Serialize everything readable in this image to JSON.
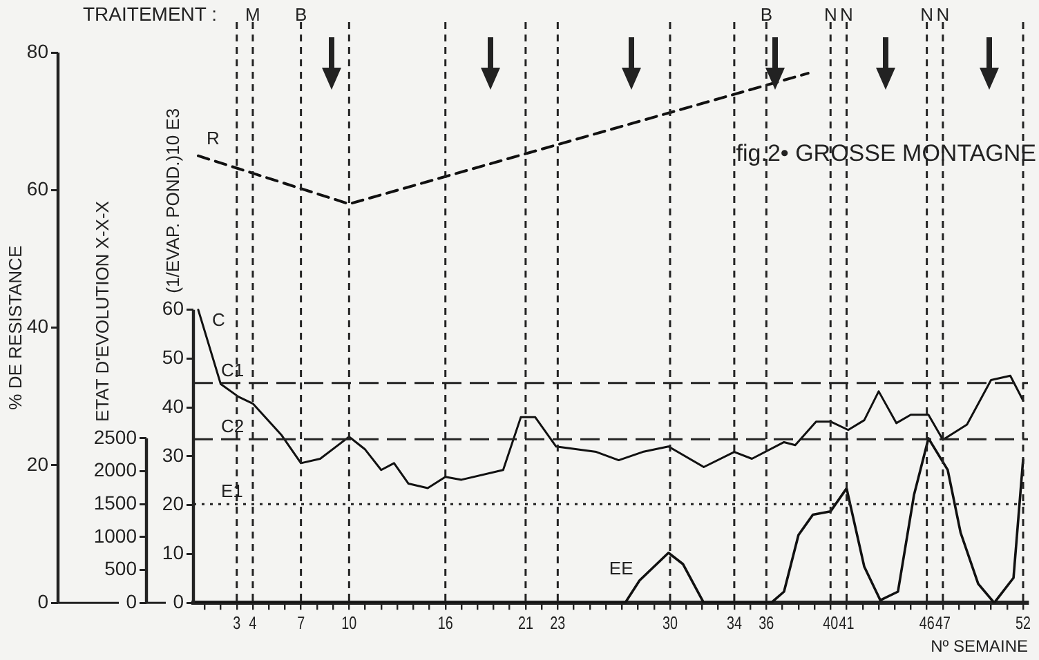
{
  "chart_data": {
    "type": "line",
    "title": "fig.2• GROSSE MONTAGNE",
    "xlabel": "Nº SEMAINE",
    "ylabel": "% DE RESISTANCE",
    "y2label": "(1/EVAP. POND.)10 E3",
    "y3label": "ETAT D'EVOLUTION X-X-X",
    "annotations": [
      "TRAITEMENT :"
    ],
    "xlim": [
      0.3,
      52.3
    ],
    "xticks": [
      {
        "value": 1,
        "label": null
      },
      {
        "value": 2,
        "label": null
      },
      3,
      4,
      {
        "value": 5,
        "label": null
      },
      {
        "value": 6,
        "label": null
      },
      7,
      {
        "value": 8,
        "label": null
      },
      {
        "value": 9,
        "label": null
      },
      10,
      {
        "value": 11,
        "label": null
      },
      {
        "value": 12,
        "label": null
      },
      {
        "value": 13,
        "label": null
      },
      {
        "value": 14,
        "label": null
      },
      {
        "value": 15,
        "label": null
      },
      16,
      {
        "value": 17,
        "label": null
      },
      {
        "value": 18,
        "label": null
      },
      {
        "value": 19,
        "label": null
      },
      {
        "value": 20,
        "label": null
      },
      21,
      {
        "value": 22,
        "label": null
      },
      23,
      {
        "value": 24,
        "label": null
      },
      {
        "value": 25,
        "label": null
      },
      {
        "value": 26,
        "label": null
      },
      {
        "value": 27,
        "label": null
      },
      {
        "value": 28,
        "label": null
      },
      {
        "value": 29,
        "label": null
      },
      30,
      {
        "value": 31,
        "label": null
      },
      {
        "value": 32,
        "label": null
      },
      {
        "value": 33,
        "label": null
      },
      34,
      {
        "value": 35,
        "label": null
      },
      36,
      {
        "value": 37,
        "label": null
      },
      {
        "value": 38,
        "label": null
      },
      {
        "value": 39,
        "label": null
      },
      40,
      41,
      {
        "value": 42,
        "label": null
      },
      {
        "value": 43,
        "label": null
      },
      {
        "value": 44,
        "label": null
      },
      {
        "value": 45,
        "label": null
      },
      46,
      47,
      {
        "value": 48,
        "label": null
      },
      {
        "value": 49,
        "label": null
      },
      {
        "value": 50,
        "label": null
      },
      {
        "value": 51,
        "label": null
      },
      52
    ],
    "ylim": [
      0,
      80
    ],
    "yticks": [
      0,
      20,
      40,
      60,
      80
    ],
    "y2lim": [
      0,
      60
    ],
    "y2ticks": [
      0,
      10,
      20,
      30,
      40,
      50,
      60
    ],
    "y3lim": [
      0,
      2500
    ],
    "y3ticks": [
      0,
      500,
      1000,
      1500,
      2000,
      2500
    ],
    "grid": false,
    "legend": false,
    "marker": "none",
    "series": [
      {
        "name": "R",
        "color": "#111111",
        "axis": "y",
        "line_style": "dashed",
        "x": [
          0.6,
          10,
          38.6
        ],
        "values": [
          65,
          58,
          77
        ]
      },
      {
        "name": "C",
        "color": "#111111",
        "axis": "y2",
        "line_style": "solid",
        "x": [
          0.6,
          2,
          3.1,
          4,
          5.8,
          7,
          8.2,
          10,
          11,
          12,
          12.8,
          13.7,
          14.9,
          16,
          17,
          19.6,
          20.7,
          21.6,
          22.9,
          25.4,
          26.8,
          28.3,
          29.9,
          32.1,
          34,
          35.1,
          37.1,
          37.8,
          39.1,
          40,
          41.1,
          42.1,
          43,
          44.1,
          45,
          46.1,
          47,
          48.5,
          50,
          51.2,
          52
        ],
        "values": [
          60,
          44.8,
          42.2,
          40.8,
          34.3,
          28.6,
          29.5,
          34,
          31.4,
          27.2,
          28.6,
          24.4,
          23.5,
          25.8,
          25.2,
          27.2,
          38,
          38,
          32,
          30.9,
          29.2,
          30.9,
          32,
          27.8,
          30.9,
          29.5,
          32.9,
          32.3,
          37.1,
          37.1,
          35.4,
          37.4,
          43.3,
          36.8,
          38.5,
          38.5,
          33.4,
          36.5,
          45.6,
          46.5,
          41.4
        ]
      },
      {
        "name": "EE",
        "color": "#111111",
        "axis": "y3",
        "line_style": "solid",
        "x": [
          0.3,
          27.2,
          28.1,
          29.9,
          30.8,
          32.1,
          36.3,
          37.1,
          38,
          38.9,
          40,
          41,
          42.1,
          43.1,
          44.2,
          45.2,
          46.1,
          47.3,
          48.1,
          49.2,
          50.2,
          51.4,
          52
        ],
        "values": [
          0,
          0,
          340,
          760,
          590,
          0,
          0,
          170,
          1030,
          1340,
          1390,
          1740,
          550,
          40,
          170,
          1640,
          2500,
          2020,
          1070,
          290,
          0,
          380,
          2180
        ]
      }
    ],
    "ref_lines": [
      {
        "axis": "x",
        "value": 3,
        "line_style": "dashed"
      },
      {
        "axis": "x",
        "value": 4,
        "label": "M",
        "line_style": "dashed"
      },
      {
        "axis": "x",
        "value": 7,
        "label": "B",
        "line_style": "dashed"
      },
      {
        "axis": "x",
        "value": 10,
        "line_style": "dashed"
      },
      {
        "axis": "x",
        "value": 16,
        "line_style": "dashed"
      },
      {
        "axis": "x",
        "value": 21,
        "line_style": "dashed"
      },
      {
        "axis": "x",
        "value": 23,
        "line_style": "dashed"
      },
      {
        "axis": "x",
        "value": 30,
        "line_style": "dashed"
      },
      {
        "axis": "x",
        "value": 34,
        "line_style": "dashed"
      },
      {
        "axis": "x",
        "value": 36,
        "label": "B",
        "line_style": "dashed"
      },
      {
        "axis": "x",
        "value": 40,
        "label": "N",
        "line_style": "dashed"
      },
      {
        "axis": "x",
        "value": 41,
        "label": "N",
        "line_style": "dashed"
      },
      {
        "axis": "x",
        "value": 46,
        "label": "N",
        "line_style": "dashed"
      },
      {
        "axis": "x",
        "value": 47,
        "label": "N",
        "line_style": "dashed"
      },
      {
        "axis": "x",
        "value": 52,
        "line_style": "dashed"
      },
      {
        "axis": "y2",
        "value": 45,
        "label": "C1",
        "line_style": "dashed"
      },
      {
        "axis": "y2",
        "value": 33.5,
        "label": "C2",
        "line_style": "dashed"
      },
      {
        "axis": "y3",
        "value": 1500,
        "label": "E1",
        "line_style": "dotted"
      }
    ]
  }
}
